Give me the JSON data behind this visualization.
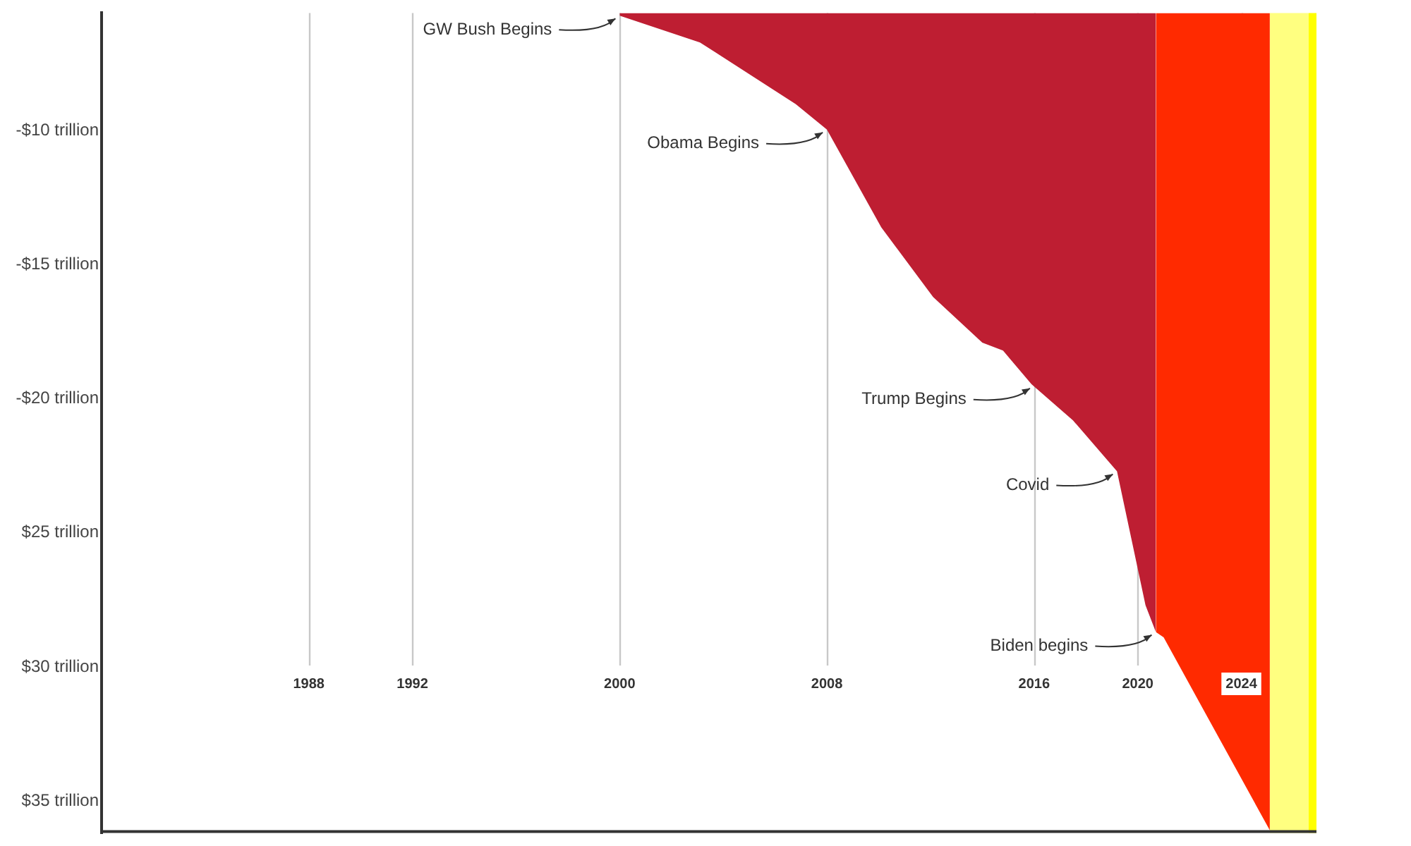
{
  "chart_data": {
    "type": "area",
    "xlim": [
      1980,
      2026.9
    ],
    "ylim": [
      -36.2,
      -5.6
    ],
    "xticks": [
      1988,
      1992,
      2000,
      2008,
      2016,
      2020,
      2024
    ],
    "yticks": [
      {
        "value": -10,
        "label": "-$10 trillion"
      },
      {
        "value": -15,
        "label": "-$15 trillion"
      },
      {
        "value": -20,
        "label": "-$20 trillion"
      },
      {
        "value": -25,
        "label": "$25 trillion"
      },
      {
        "value": -30,
        "label": "$30 trillion"
      },
      {
        "value": -35,
        "label": "$35 trillion"
      }
    ],
    "grid": "x",
    "series": [
      {
        "color": "#be1e32",
        "x": [
          2000,
          2003.1,
          2006.8,
          2008,
          2010.1,
          2012.1,
          2014,
          2014.8,
          2015.9,
          2017.5,
          2019.2,
          2020.3,
          2020.7
        ],
        "values": [
          -5.7,
          -6.7,
          -9.0,
          -9.95,
          -13.6,
          -16.2,
          -17.9,
          -18.2,
          -19.45,
          -20.8,
          -22.7,
          -27.7,
          -28.7
        ]
      },
      {
        "color": "#ff2a00",
        "x": [
          2020.7,
          2021,
          2025.1
        ],
        "values": [
          -28.7,
          -28.9,
          -36.1
        ]
      }
    ],
    "bands": [
      {
        "axis": "x",
        "from": 2025.1,
        "to": 2026.6,
        "color": "#ffff80"
      },
      {
        "axis": "x",
        "from": 2026.6,
        "to": 2026.9,
        "color": "#ffff00"
      }
    ],
    "annotations": [
      {
        "text": "GW Bush Begins",
        "x": 2000,
        "y": -5.7
      },
      {
        "text": "Obama Begins",
        "x": 2008,
        "y": -9.95
      },
      {
        "text": "Trump Begins",
        "x": 2016,
        "y": -19.5
      },
      {
        "text": "Covid",
        "x": 2019.2,
        "y": -22.7
      },
      {
        "text": "Biden begins",
        "x": 2020.7,
        "y": -28.7
      }
    ]
  }
}
